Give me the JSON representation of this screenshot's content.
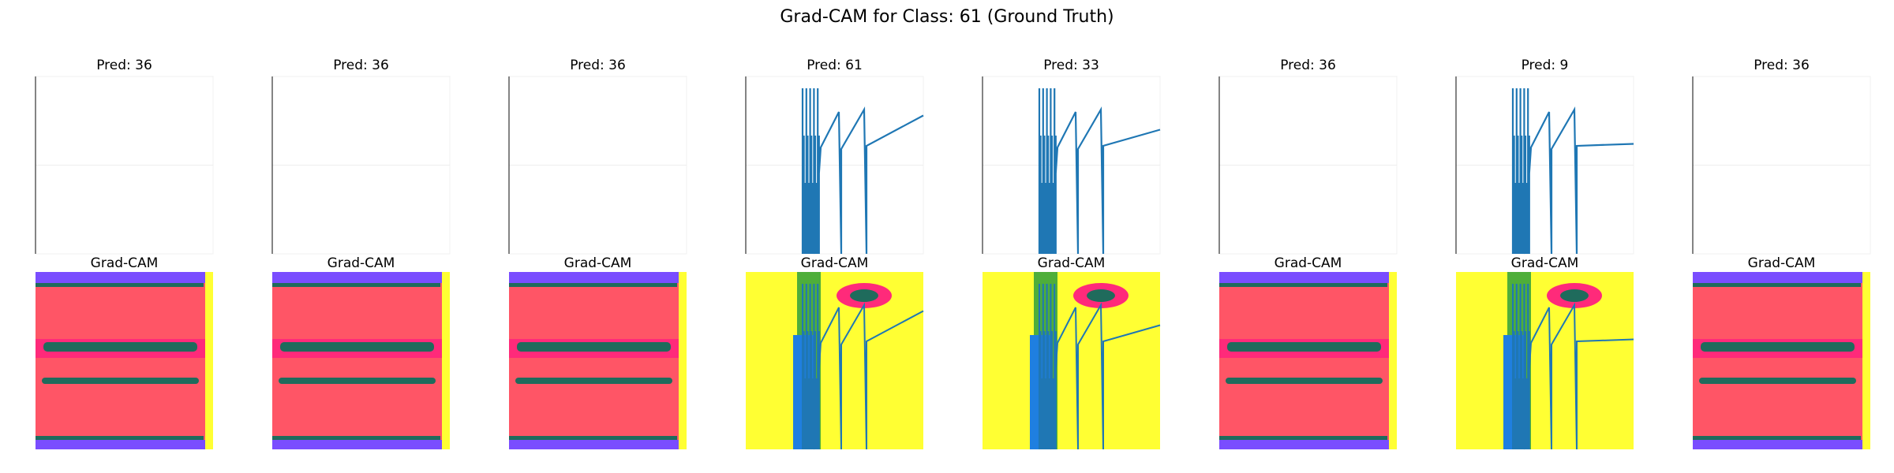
{
  "figure": {
    "title": "Grad-CAM for Class: 61 (Ground Truth)"
  },
  "colors": {
    "line": "#1f77b4",
    "heat_red": "#ff5566",
    "heat_pink": "#ff2a7a",
    "heat_teal": "#1f6b5c",
    "heat_purple": "#7a4dff",
    "heat_yellow": "#ffff33",
    "heat_green": "#2fa03c",
    "heat_blue": "#1f7fe0"
  },
  "chart_data": [
    {
      "type": "line",
      "title": "Pred: 36",
      "heatmap_title": "Grad-CAM",
      "pattern": "flat"
    },
    {
      "type": "line",
      "title": "Pred: 36",
      "heatmap_title": "Grad-CAM",
      "pattern": "flat"
    },
    {
      "type": "line",
      "title": "Pred: 36",
      "heatmap_title": "Grad-CAM",
      "pattern": "flat"
    },
    {
      "type": "line",
      "title": "Pred: 61",
      "heatmap_title": "Grad-CAM",
      "pattern": "spiky",
      "series_end": 0.78
    },
    {
      "type": "line",
      "title": "Pred: 33",
      "heatmap_title": "Grad-CAM",
      "pattern": "spiky",
      "series_end": 0.7
    },
    {
      "type": "line",
      "title": "Pred: 36",
      "heatmap_title": "Grad-CAM",
      "pattern": "flat"
    },
    {
      "type": "line",
      "title": "Pred: 9",
      "heatmap_title": "Grad-CAM",
      "pattern": "spiky",
      "series_end": 0.62
    },
    {
      "type": "line",
      "title": "Pred: 36",
      "heatmap_title": "Grad-CAM",
      "pattern": "flat"
    }
  ]
}
